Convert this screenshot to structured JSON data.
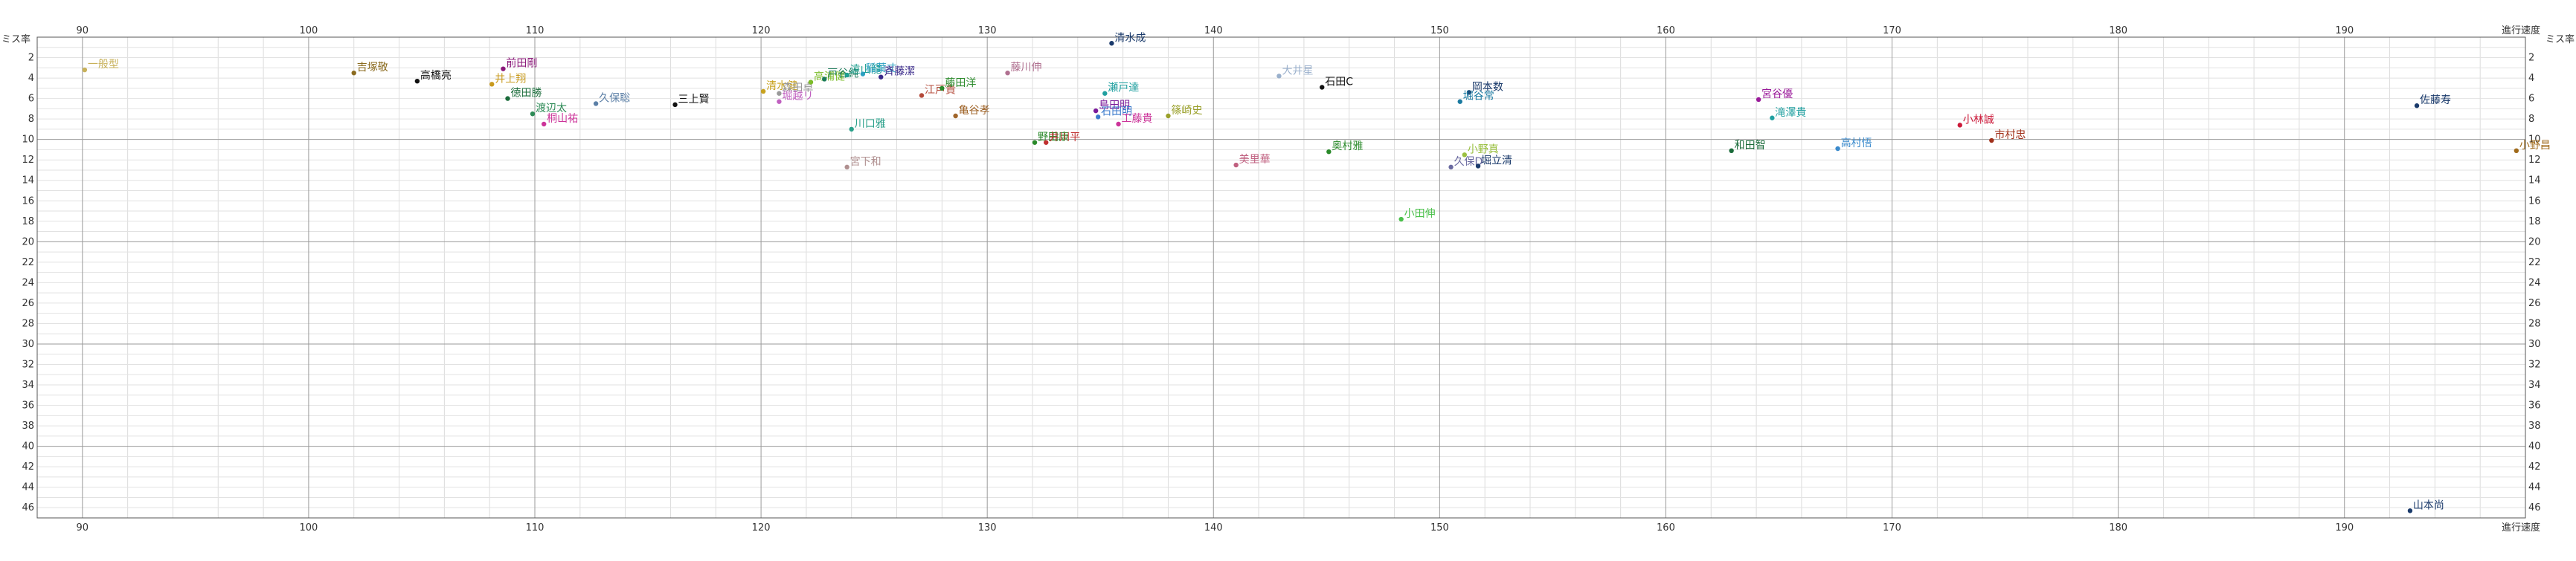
{
  "chart_data": {
    "type": "scatter",
    "title": "",
    "xlabel": "進行速度",
    "ylabel": "ミス率",
    "xlim": [
      88,
      198
    ],
    "ylim": [
      0,
      47
    ],
    "y_inverted": true,
    "grid": true,
    "x_ticks": [
      90,
      100,
      110,
      120,
      130,
      140,
      150,
      160,
      170,
      180,
      190
    ],
    "y_ticks": [
      2,
      4,
      6,
      8,
      10,
      12,
      14,
      16,
      18,
      20,
      22,
      24,
      26,
      28,
      30,
      32,
      34,
      36,
      38,
      40,
      42,
      44,
      46
    ],
    "points": [
      {
        "label": "一般型",
        "x": 90.1,
        "y": 3.2,
        "color": "#c8b15a"
      },
      {
        "label": "吉塚敬",
        "x": 102.0,
        "y": 3.5,
        "color": "#8b6b1f"
      },
      {
        "label": "高橋亮",
        "x": 104.8,
        "y": 4.3,
        "color": "#111111"
      },
      {
        "label": "前田剛",
        "x": 108.6,
        "y": 3.1,
        "color": "#8b1a7a"
      },
      {
        "label": "井上翔",
        "x": 108.1,
        "y": 4.6,
        "color": "#c89a1e"
      },
      {
        "label": "徳田勝",
        "x": 108.8,
        "y": 6.0,
        "color": "#1a6b3a"
      },
      {
        "label": "渡辺太",
        "x": 109.9,
        "y": 7.5,
        "color": "#2e8b57"
      },
      {
        "label": "桐山祐",
        "x": 110.4,
        "y": 8.5,
        "color": "#cc3399"
      },
      {
        "label": "久保聡",
        "x": 112.7,
        "y": 6.5,
        "color": "#5b7fa6"
      },
      {
        "label": "三上賢",
        "x": 116.2,
        "y": 6.6,
        "color": "#111111"
      },
      {
        "label": "清水健",
        "x": 120.1,
        "y": 5.3,
        "color": "#c8a21e"
      },
      {
        "label": "森田卓",
        "x": 120.8,
        "y": 5.5,
        "color": "#999999"
      },
      {
        "label": "堀越リ",
        "x": 120.8,
        "y": 6.3,
        "color": "#c060c0"
      },
      {
        "label": "高浦健",
        "x": 122.2,
        "y": 4.4,
        "color": "#7cbc2a"
      },
      {
        "label": "戸谷純",
        "x": 122.8,
        "y": 4.1,
        "color": "#1a7a5a"
      },
      {
        "label": "遠山龍",
        "x": 123.8,
        "y": 3.7,
        "color": "#20a090"
      },
      {
        "label": "稲葉丈",
        "x": 124.5,
        "y": 3.6,
        "color": "#2aa0c0"
      },
      {
        "label": "斉藤潔",
        "x": 125.3,
        "y": 3.9,
        "color": "#3a2a8a"
      },
      {
        "label": "江戸貴",
        "x": 127.1,
        "y": 5.7,
        "color": "#b44a3a"
      },
      {
        "label": "藤田洋",
        "x": 128.0,
        "y": 5.0,
        "color": "#2a8a2a"
      },
      {
        "label": "亀谷孝",
        "x": 128.6,
        "y": 7.7,
        "color": "#a0652a"
      },
      {
        "label": "藤川伸",
        "x": 130.9,
        "y": 3.5,
        "color": "#b07090"
      },
      {
        "label": "川口雅",
        "x": 124.0,
        "y": 9.0,
        "color": "#2aa08a"
      },
      {
        "label": "宮下和",
        "x": 123.8,
        "y": 12.7,
        "color": "#b09090"
      },
      {
        "label": "野田康",
        "x": 132.1,
        "y": 10.3,
        "color": "#2a8a2a"
      },
      {
        "label": "井川平",
        "x": 132.6,
        "y": 10.3,
        "color": "#c03030"
      },
      {
        "label": "清水成",
        "x": 135.5,
        "y": 0.6,
        "color": "#1a3a6b"
      },
      {
        "label": "瀬戸達",
        "x": 135.2,
        "y": 5.5,
        "color": "#20a0a0"
      },
      {
        "label": "島田明",
        "x": 134.8,
        "y": 7.2,
        "color": "#7a1a9a"
      },
      {
        "label": "石田明",
        "x": 134.9,
        "y": 7.8,
        "color": "#3a7acc"
      },
      {
        "label": "工藤貴",
        "x": 135.8,
        "y": 8.5,
        "color": "#cc3399"
      },
      {
        "label": "篠崎史",
        "x": 138.0,
        "y": 7.7,
        "color": "#9aa02a"
      },
      {
        "label": "美里華",
        "x": 141.0,
        "y": 12.5,
        "color": "#c06080"
      },
      {
        "label": "大井星",
        "x": 142.9,
        "y": 3.8,
        "color": "#9ab0cc"
      },
      {
        "label": "石田C",
        "x": 144.8,
        "y": 4.9,
        "color": "#111111"
      },
      {
        "label": "奥村雅",
        "x": 145.1,
        "y": 11.2,
        "color": "#2a8a2a"
      },
      {
        "label": "小田伸",
        "x": 148.3,
        "y": 17.8,
        "color": "#4ac04a"
      },
      {
        "label": "岡本数",
        "x": 151.3,
        "y": 5.4,
        "color": "#1a3a6b"
      },
      {
        "label": "堀谷常",
        "x": 150.9,
        "y": 6.3,
        "color": "#1a7aa0"
      },
      {
        "label": "小野真",
        "x": 151.1,
        "y": 11.5,
        "color": "#9ac040"
      },
      {
        "label": "久保D",
        "x": 150.5,
        "y": 12.7,
        "color": "#6a6aa0"
      },
      {
        "label": "堀立清",
        "x": 151.7,
        "y": 12.6,
        "color": "#1a3a6b"
      },
      {
        "label": "和田智",
        "x": 162.9,
        "y": 11.1,
        "color": "#1a6b3a"
      },
      {
        "label": "宮谷優",
        "x": 164.1,
        "y": 6.1,
        "color": "#9a1a9a"
      },
      {
        "label": "滝澤貴",
        "x": 164.7,
        "y": 7.9,
        "color": "#20a0a0"
      },
      {
        "label": "高村悟",
        "x": 167.6,
        "y": 10.9,
        "color": "#3a8acc"
      },
      {
        "label": "小林誠",
        "x": 173.0,
        "y": 8.6,
        "color": "#cc1a3a"
      },
      {
        "label": "市村忠",
        "x": 174.4,
        "y": 10.1,
        "color": "#a0301a"
      },
      {
        "label": "佐藤寿",
        "x": 193.2,
        "y": 6.7,
        "color": "#1a3a6b"
      },
      {
        "label": "小野昌",
        "x": 197.6,
        "y": 11.1,
        "color": "#a06a1a"
      },
      {
        "label": "山本尚",
        "x": 192.9,
        "y": 46.3,
        "color": "#1a3a6b"
      }
    ]
  }
}
